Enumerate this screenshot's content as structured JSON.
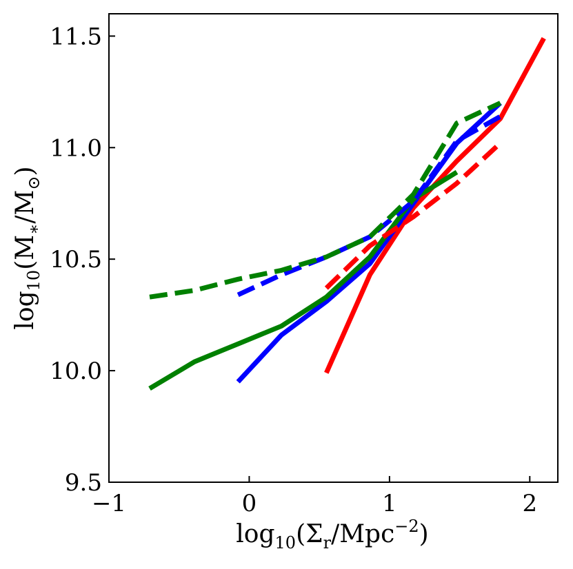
{
  "chart_data": {
    "type": "line",
    "title": "",
    "xlabel": {
      "base": "log",
      "sub": "10",
      "pre": "(Σ",
      "sub2": "r",
      "post": "/Mpc",
      "sup": "−2",
      "close": ")"
    },
    "ylabel": {
      "base": "log",
      "sub": "10",
      "pre": "(M",
      "sub2": "∗",
      "post": "/M",
      "sub3": "⊙",
      "close": ")"
    },
    "xlim": [
      -1.0,
      2.2
    ],
    "ylim": [
      9.5,
      11.6
    ],
    "xticks": [
      -1,
      0,
      1,
      2
    ],
    "xtick_labels": [
      "−1",
      "0",
      "1",
      "2"
    ],
    "yticks": [
      9.5,
      10.0,
      10.5,
      11.0,
      11.5
    ],
    "ytick_labels": [
      "9.5",
      "10.0",
      "10.5",
      "11.0",
      "11.5"
    ],
    "grid": false,
    "series": [
      {
        "name": "red-solid",
        "color": "#ff0000",
        "dash": false,
        "x": [
          0.55,
          0.86,
          1.17,
          1.48,
          1.79,
          2.1
        ],
        "y": [
          9.99,
          10.43,
          10.73,
          10.94,
          11.13,
          11.49
        ]
      },
      {
        "name": "blue-solid",
        "color": "#0000ff",
        "dash": false,
        "x": [
          -0.08,
          0.23,
          0.55,
          0.86,
          1.17,
          1.48,
          1.79
        ],
        "y": [
          9.95,
          10.16,
          10.31,
          10.48,
          10.75,
          11.02,
          11.2
        ]
      },
      {
        "name": "green-solid",
        "color": "#008000",
        "dash": false,
        "x": [
          -0.71,
          -0.39,
          -0.08,
          0.23,
          0.55,
          0.86,
          1.17,
          1.48
        ],
        "y": [
          9.92,
          10.04,
          10.12,
          10.2,
          10.33,
          10.51,
          10.77,
          10.89
        ]
      },
      {
        "name": "red-dashed",
        "color": "#ff0000",
        "dash": true,
        "x": [
          0.55,
          0.86,
          1.17,
          1.48,
          1.79
        ],
        "y": [
          10.37,
          10.56,
          10.69,
          10.84,
          11.02
        ]
      },
      {
        "name": "blue-dashed",
        "color": "#0000ff",
        "dash": true,
        "x": [
          -0.08,
          0.23,
          0.55,
          0.86,
          1.17,
          1.48,
          1.79
        ],
        "y": [
          10.34,
          10.43,
          10.51,
          10.6,
          10.76,
          11.03,
          11.14
        ]
      },
      {
        "name": "green-dashed",
        "color": "#008000",
        "dash": true,
        "x": [
          -0.71,
          -0.39,
          -0.08,
          0.23,
          0.55,
          0.86,
          1.17,
          1.48,
          1.79
        ],
        "y": [
          10.33,
          10.36,
          10.41,
          10.45,
          10.51,
          10.6,
          10.79,
          11.11,
          11.2
        ]
      }
    ]
  }
}
